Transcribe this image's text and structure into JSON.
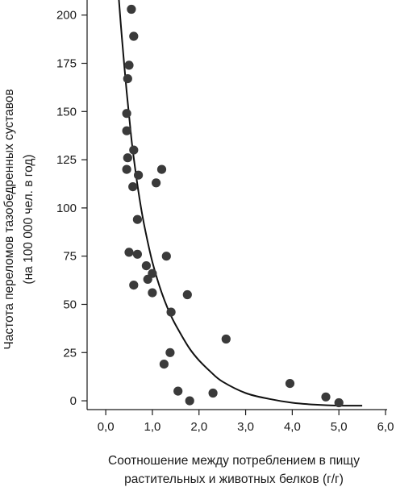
{
  "chart_data": {
    "type": "scatter",
    "title": "",
    "xlabel": "Соотношение между потреблением в пищу растительных и животных белков (г/г)",
    "xlabel_lines": [
      "Соотношение между потреблением в пищу",
      "растительных и животных белков (г/г)"
    ],
    "ylabel": "Частота переломов тазобедренных суставов (на 100 000 чел. в год)",
    "ylabel_lines": [
      "Частота переломов тазобедренных суставов",
      "(на 100 000 чел. в год)"
    ],
    "xlim": [
      -0.4,
      6.0
    ],
    "ylim": [
      -10,
      212
    ],
    "x_ticks": [
      0.0,
      1.0,
      2.0,
      3.0,
      4.0,
      5.0,
      6.0
    ],
    "x_tick_labels": [
      "0,0",
      "1,0",
      "2,0",
      "3,0",
      "4,0",
      "5,0",
      "6,0"
    ],
    "y_ticks": [
      0,
      25,
      50,
      75,
      100,
      125,
      150,
      175,
      200
    ],
    "y_tick_labels": [
      "0",
      "25",
      "50",
      "75",
      "100",
      "125",
      "150",
      "175",
      "200"
    ],
    "grid": false,
    "marker_color": "#3a3a3a",
    "line_color": "#111111",
    "points": [
      {
        "x": 0.55,
        "y": 203
      },
      {
        "x": 0.6,
        "y": 189
      },
      {
        "x": 0.5,
        "y": 174
      },
      {
        "x": 0.47,
        "y": 167
      },
      {
        "x": 0.45,
        "y": 149
      },
      {
        "x": 0.45,
        "y": 140
      },
      {
        "x": 0.6,
        "y": 130
      },
      {
        "x": 0.47,
        "y": 126
      },
      {
        "x": 0.45,
        "y": 120
      },
      {
        "x": 1.2,
        "y": 120
      },
      {
        "x": 0.7,
        "y": 117
      },
      {
        "x": 1.08,
        "y": 113
      },
      {
        "x": 0.58,
        "y": 111
      },
      {
        "x": 0.68,
        "y": 94
      },
      {
        "x": 0.5,
        "y": 77
      },
      {
        "x": 0.68,
        "y": 76
      },
      {
        "x": 1.3,
        "y": 75
      },
      {
        "x": 0.87,
        "y": 70
      },
      {
        "x": 1.0,
        "y": 66
      },
      {
        "x": 0.9,
        "y": 63
      },
      {
        "x": 0.6,
        "y": 60
      },
      {
        "x": 1.0,
        "y": 56
      },
      {
        "x": 1.75,
        "y": 55
      },
      {
        "x": 1.4,
        "y": 46
      },
      {
        "x": 2.58,
        "y": 32
      },
      {
        "x": 1.38,
        "y": 25
      },
      {
        "x": 1.25,
        "y": 19
      },
      {
        "x": 3.95,
        "y": 9
      },
      {
        "x": 1.55,
        "y": 5
      },
      {
        "x": 2.3,
        "y": 4
      },
      {
        "x": 4.72,
        "y": 2
      },
      {
        "x": 1.8,
        "y": 0
      },
      {
        "x": 5.0,
        "y": -1
      }
    ],
    "fit_curve": {
      "x": [
        0.27,
        0.35,
        0.45,
        0.55,
        0.65,
        0.75,
        0.85,
        1.0,
        1.2,
        1.4,
        1.6,
        1.8,
        2.0,
        2.25,
        2.5,
        3.0,
        3.5,
        4.0,
        4.5,
        5.0,
        5.5
      ],
      "y": [
        212,
        187,
        160,
        136,
        117,
        101,
        88,
        72,
        56,
        44,
        35,
        27,
        21,
        15,
        10,
        4,
        1,
        -1,
        -2,
        -2.5,
        -2.5
      ]
    }
  }
}
